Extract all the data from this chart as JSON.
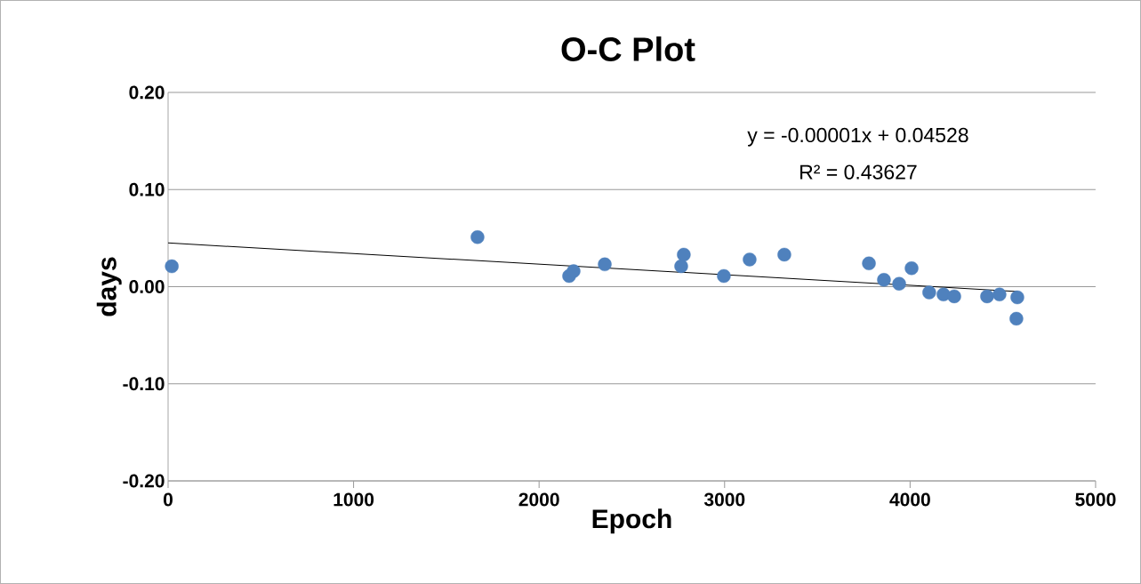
{
  "chart_data": {
    "type": "scatter",
    "title": "O-C Plot",
    "xlabel": "Epoch",
    "ylabel": "days",
    "series": [
      {
        "color": "#4f81bd",
        "marker": "circle",
        "x": [
          20,
          1668,
          2162,
          2186,
          2354,
          2766,
          2780,
          2996,
          3135,
          3322,
          3778,
          3859,
          3941,
          4008,
          4103,
          4180,
          4238,
          4415,
          4482,
          4578,
          4573
        ],
        "values": [
          0.021,
          0.051,
          0.011,
          0.016,
          0.023,
          0.021,
          0.033,
          0.011,
          0.028,
          0.033,
          0.024,
          0.007,
          0.003,
          0.019,
          -0.006,
          -0.008,
          -0.01,
          -0.01,
          -0.008,
          -0.011,
          -0.033
        ]
      },
      {
        "type": "line",
        "color": "#000000",
        "marker": "none",
        "x": [
          0,
          4580
        ],
        "values": [
          0.045,
          -0.005
        ]
      }
    ],
    "xlim": [
      0,
      5000
    ],
    "xticks": [
      0,
      1000,
      2000,
      3000,
      4000,
      5000
    ],
    "ylim": [
      -0.2,
      0.2
    ],
    "yticks": [
      {
        "value": -0.2,
        "label": "-0.20"
      },
      {
        "value": -0.1,
        "label": "-0.10"
      },
      {
        "value": 0,
        "label": "0.00"
      },
      {
        "value": 0.1,
        "label": "0.10"
      },
      {
        "value": 0.2,
        "label": "0.20"
      }
    ],
    "grid": "y",
    "annotations": [
      "y = -0.00001x + 0.04528",
      "R² = 0.43627"
    ]
  }
}
